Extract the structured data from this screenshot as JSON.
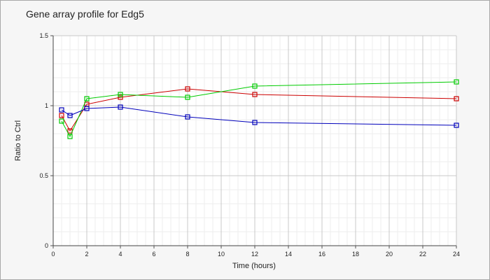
{
  "chart_data": {
    "type": "line",
    "title": "Gene array profile for Edg5",
    "xlabel": "Time (hours)",
    "ylabel": "Ratio to Ctrl",
    "xlim": [
      0,
      24
    ],
    "ylim": [
      0,
      1.5
    ],
    "x_ticks": [
      "0",
      "2",
      "4",
      "6",
      "8",
      "10",
      "12",
      "14",
      "16",
      "18",
      "20",
      "22",
      "24"
    ],
    "y_ticks": [
      "0",
      "0.5",
      "1",
      "1.5"
    ],
    "grid": true,
    "legend": "none",
    "x": [
      0.5,
      1,
      2,
      4,
      8,
      12,
      24
    ],
    "series": [
      {
        "color": "#cc0000",
        "values": [
          0.93,
          0.82,
          1.01,
          1.06,
          1.12,
          1.08,
          1.05
        ]
      },
      {
        "color": "#00cc00",
        "values": [
          0.89,
          0.78,
          1.05,
          1.08,
          1.06,
          1.14,
          1.17
        ]
      },
      {
        "color": "#0000bb",
        "values": [
          0.97,
          0.93,
          0.98,
          0.99,
          0.92,
          0.88,
          0.86
        ]
      }
    ]
  }
}
